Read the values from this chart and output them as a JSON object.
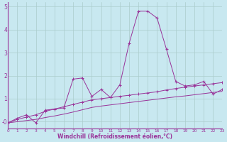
{
  "x": [
    0,
    1,
    2,
    3,
    4,
    5,
    6,
    7,
    8,
    9,
    10,
    11,
    12,
    13,
    14,
    15,
    16,
    17,
    18,
    19,
    20,
    21,
    22,
    23
  ],
  "line1": [
    -0.05,
    0.15,
    0.3,
    -0.05,
    0.5,
    0.55,
    0.6,
    1.85,
    1.9,
    1.1,
    1.4,
    1.05,
    1.6,
    3.4,
    4.8,
    4.8,
    4.5,
    3.15,
    1.75,
    1.55,
    1.6,
    1.75,
    1.2,
    1.4
  ],
  "line2": [
    -0.05,
    0.1,
    0.2,
    0.3,
    0.45,
    0.55,
    0.65,
    0.75,
    0.85,
    0.95,
    1.0,
    1.05,
    1.1,
    1.15,
    1.2,
    1.25,
    1.3,
    1.38,
    1.44,
    1.5,
    1.55,
    1.6,
    1.65,
    1.7
  ],
  "line3": [
    -0.05,
    0.0,
    0.05,
    0.1,
    0.18,
    0.25,
    0.33,
    0.42,
    0.52,
    0.62,
    0.68,
    0.73,
    0.78,
    0.83,
    0.88,
    0.93,
    0.98,
    1.03,
    1.08,
    1.12,
    1.17,
    1.22,
    1.27,
    1.32
  ],
  "color": "#993399",
  "bg_color": "#c8e8f0",
  "grid_color": "#aacccc",
  "xlabel": "Windchill (Refroidissement éolien,°C)",
  "xlim": [
    0,
    23
  ],
  "ylim": [
    -0.3,
    5.2
  ],
  "yticks": [
    0,
    1,
    2,
    3,
    4,
    5
  ],
  "ytick_labels": [
    "-0",
    "1",
    "2",
    "3",
    "4",
    "5"
  ],
  "xticks": [
    0,
    1,
    2,
    3,
    4,
    5,
    6,
    7,
    8,
    9,
    10,
    11,
    12,
    13,
    14,
    15,
    16,
    17,
    18,
    19,
    20,
    21,
    22,
    23
  ]
}
